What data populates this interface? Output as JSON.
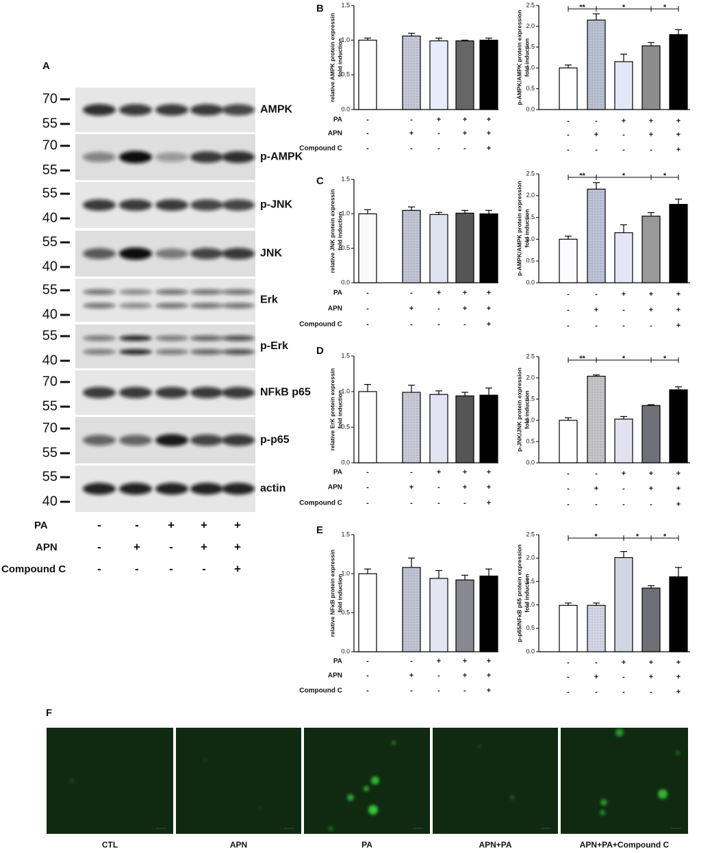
{
  "panel_labels": [
    "A",
    "B",
    "C",
    "D",
    "E",
    "F"
  ],
  "blot": {
    "rows": [
      {
        "protein": "AMPK",
        "markers": [
          70,
          55
        ]
      },
      {
        "protein": "p-AMPK",
        "markers": [
          70,
          55
        ]
      },
      {
        "protein": "p-JNK",
        "markers": [
          55,
          40
        ]
      },
      {
        "protein": "JNK",
        "markers": [
          55,
          40
        ]
      },
      {
        "protein": "Erk",
        "markers": [
          55,
          40
        ]
      },
      {
        "protein": "p-Erk",
        "markers": [
          55,
          40
        ]
      },
      {
        "protein": "NFkB p65",
        "markers": [
          70,
          55
        ]
      },
      {
        "protein": "p-p65",
        "markers": [
          70,
          55
        ]
      },
      {
        "protein": "actin",
        "markers": [
          55,
          40
        ]
      }
    ],
    "treatments": [
      {
        "name": "PA",
        "signs": [
          "-",
          "-",
          "+",
          "+",
          "+"
        ]
      },
      {
        "name": "APN",
        "signs": [
          "-",
          "+",
          "-",
          "+",
          "+"
        ]
      },
      {
        "name": "Compound C",
        "signs": [
          "-",
          "-",
          "-",
          "-",
          "+"
        ]
      }
    ]
  },
  "chart_data": [
    {
      "type": "bar",
      "ylabel": [
        "relative AMPK protein expressin",
        "fold induction"
      ],
      "ylim": [
        0,
        1.5
      ],
      "yticks": [
        {
          "value": 0,
          "label": "0.0"
        },
        0.5,
        {
          "value": 1,
          "label": "1.0"
        },
        1.5
      ],
      "values": [
        1.0,
        1.06,
        0.99,
        0.99,
        1.0
      ],
      "errors": [
        0.03,
        0.04,
        0.04,
        0.01,
        0.03
      ],
      "colors": [
        "#ffffff",
        "#c3c7d8",
        "#e6ecfa",
        "#666666",
        "#000000"
      ],
      "treatments": [
        {
          "name": "PA",
          "signs": [
            "-",
            "-",
            "+",
            "+",
            "+"
          ]
        },
        {
          "name": "APN",
          "signs": [
            "-",
            "+",
            "-",
            "+",
            "+"
          ]
        },
        {
          "name": "Compound C",
          "signs": [
            "-",
            "-",
            "-",
            "-",
            "+"
          ]
        }
      ],
      "significance": []
    },
    {
      "type": "bar",
      "ylabel": [
        "p-AMPK/AMPK protein expression",
        "fold induction"
      ],
      "ylim": [
        0,
        2.5
      ],
      "yticks": [
        {
          "value": 0,
          "label": "0.0"
        },
        0.5,
        {
          "value": 1,
          "label": "1.0"
        },
        1.5,
        {
          "value": 2,
          "label": "2.0"
        },
        2.5
      ],
      "values": [
        1.0,
        2.15,
        1.15,
        1.53,
        1.8
      ],
      "errors": [
        0.07,
        0.15,
        0.18,
        0.08,
        0.12
      ],
      "colors": [
        "#ffffff",
        "#b8c0d2",
        "#e3e8f8",
        "#8c8c8c",
        "#000000"
      ],
      "treatments": [
        {
          "signs": [
            "-",
            "-",
            "+",
            "+",
            "+"
          ]
        },
        {
          "signs": [
            "-",
            "+",
            "-",
            "+",
            "+"
          ]
        },
        {
          "signs": [
            "-",
            "-",
            "-",
            "-",
            "+"
          ]
        }
      ],
      "significance": [
        {
          "from": 0,
          "to": 1,
          "label": "**"
        },
        {
          "from": 1,
          "to": 3,
          "label": "*"
        },
        {
          "from": 3,
          "to": 4,
          "label": "*"
        }
      ]
    },
    {
      "type": "bar",
      "ylabel": [
        "relative JNK protein expressin",
        "fold induction"
      ],
      "ylim": [
        0,
        1.5
      ],
      "yticks": [
        {
          "value": 0,
          "label": "0.0"
        },
        0.5,
        {
          "value": 1,
          "label": "1.0"
        },
        1.5
      ],
      "values": [
        1.0,
        1.05,
        0.99,
        1.01,
        1.0
      ],
      "errors": [
        0.06,
        0.05,
        0.03,
        0.04,
        0.05
      ],
      "colors": [
        "#fafafa",
        "#c0c4d4",
        "#dfe3ef",
        "#555555",
        "#000000"
      ],
      "treatments": [
        {
          "name": "PA",
          "signs": [
            "-",
            "-",
            "+",
            "+",
            "+"
          ]
        },
        {
          "name": "APN",
          "signs": [
            "-",
            "+",
            "-",
            "+",
            "+"
          ]
        },
        {
          "name": "Compound C",
          "signs": [
            "-",
            "-",
            "-",
            "-",
            "+"
          ]
        }
      ],
      "significance": []
    },
    {
      "type": "bar",
      "ylabel": [
        "p-AMPK/AMPK  protein expression",
        "fold induction"
      ],
      "ylim": [
        0,
        2.5
      ],
      "yticks": [
        {
          "value": 0,
          "label": "0.0"
        },
        0.5,
        {
          "value": 1,
          "label": "1.0"
        },
        1.5,
        {
          "value": 2,
          "label": "2.0"
        },
        2.5
      ],
      "values": [
        1.0,
        2.15,
        1.15,
        1.53,
        1.8
      ],
      "errors": [
        0.07,
        0.15,
        0.18,
        0.08,
        0.12
      ],
      "colors": [
        "#fcfcff",
        "#bcc3d6",
        "#e2e6f5",
        "#999999",
        "#000000"
      ],
      "treatments": [
        {
          "signs": [
            "-",
            "-",
            "+",
            "+",
            "+"
          ]
        },
        {
          "signs": [
            "-",
            "+",
            "-",
            "+",
            "+"
          ]
        },
        {
          "signs": [
            "-",
            "-",
            "-",
            "-",
            "+"
          ]
        }
      ],
      "significance": [
        {
          "from": 0,
          "to": 1,
          "label": "**"
        },
        {
          "from": 1,
          "to": 3,
          "label": "*"
        },
        {
          "from": 3,
          "to": 4,
          "label": "*"
        }
      ]
    },
    {
      "type": "bar",
      "ylabel": [
        "relative ErK protein expressin",
        "fold induction"
      ],
      "ylim": [
        0,
        1.5
      ],
      "yticks": [
        {
          "value": 0,
          "label": "0.0"
        },
        0.5,
        {
          "value": 1,
          "label": "1.0"
        },
        1.5
      ],
      "values": [
        1.0,
        0.99,
        0.96,
        0.94,
        0.95
      ],
      "errors": [
        0.1,
        0.1,
        0.05,
        0.05,
        0.1
      ],
      "colors": [
        "#ffffff",
        "#c8c9d8",
        "#e3e3f3",
        "#555555",
        "#000000"
      ],
      "treatments": [
        {
          "name": "PA",
          "signs": [
            "-",
            "-",
            "+",
            "+",
            "+"
          ]
        },
        {
          "name": "APN",
          "signs": [
            "-",
            "+",
            "-",
            "+",
            "+"
          ]
        },
        {
          "name": "Compound C",
          "signs": [
            "-",
            "-",
            "-",
            "-",
            "+"
          ]
        }
      ],
      "significance": []
    },
    {
      "type": "bar",
      "ylabel": [
        "p-JNK/JNK protein expression",
        "fold induction"
      ],
      "ylim": [
        0,
        2.5
      ],
      "yticks": [
        {
          "value": 0,
          "label": "0.0"
        },
        0.5,
        {
          "value": 1,
          "label": "1.0"
        },
        1.5,
        {
          "value": 2,
          "label": "2.0"
        },
        2.5
      ],
      "values": [
        1.0,
        2.04,
        1.03,
        1.35,
        1.72
      ],
      "errors": [
        0.06,
        0.03,
        0.06,
        0.02,
        0.07
      ],
      "colors": [
        "#ffffff",
        "#c3c3c8",
        "#e1e1ef",
        "#707078",
        "#000000"
      ],
      "treatments": [
        {
          "signs": [
            "-",
            "-",
            "+",
            "+",
            "+"
          ]
        },
        {
          "signs": [
            "-",
            "+",
            "-",
            "+",
            "+"
          ]
        },
        {
          "signs": [
            "-",
            "-",
            "-",
            "-",
            "+"
          ]
        }
      ],
      "significance": [
        {
          "from": 0,
          "to": 1,
          "label": "**"
        },
        {
          "from": 1,
          "to": 3,
          "label": "*"
        },
        {
          "from": 3,
          "to": 4,
          "label": "*"
        }
      ]
    },
    {
      "type": "bar",
      "ylabel": [
        "relative NFκB protein expressin",
        "fold induction"
      ],
      "ylim": [
        0,
        1.5
      ],
      "yticks": [
        {
          "value": 0,
          "label": "0.0"
        },
        0.5,
        {
          "value": 1,
          "label": "1.0"
        },
        1.5
      ],
      "values": [
        1.0,
        1.08,
        0.94,
        0.92,
        0.97
      ],
      "errors": [
        0.06,
        0.12,
        0.1,
        0.06,
        0.09
      ],
      "colors": [
        "#ffffff",
        "#c0c3d3",
        "#e3e5f0",
        "#888890",
        "#000000"
      ],
      "treatments": [
        {
          "name": "PA",
          "signs": [
            "-",
            "-",
            "+",
            "+",
            "+"
          ]
        },
        {
          "name": "APN",
          "signs": [
            "-",
            "+",
            "-",
            "+",
            "+"
          ]
        },
        {
          "name": "Compound C",
          "signs": [
            "-",
            "-",
            "-",
            "-",
            "+"
          ]
        }
      ],
      "significance": []
    },
    {
      "type": "bar",
      "ylabel": [
        "p-p65/NFκB p65 protein expression",
        "fold induction"
      ],
      "ylim": [
        0,
        2.5
      ],
      "yticks": [
        {
          "value": 0,
          "label": "0.0"
        },
        0.5,
        {
          "value": 1,
          "label": "1.0"
        },
        1.5,
        {
          "value": 2,
          "label": "2.0"
        },
        2.5
      ],
      "values": [
        0.99,
        0.99,
        2.01,
        1.36,
        1.6
      ],
      "errors": [
        0.05,
        0.05,
        0.13,
        0.05,
        0.2
      ],
      "colors": [
        "#ffffff",
        "#d4d6e8",
        "#d0d7e0",
        "#6e6e76",
        "#000000"
      ],
      "treatments": [
        {
          "signs": [
            "-",
            "-",
            "+",
            "+",
            "+"
          ]
        },
        {
          "signs": [
            "-",
            "+",
            "-",
            "+",
            "+"
          ]
        },
        {
          "signs": [
            "-",
            "-",
            "-",
            "-",
            "+"
          ]
        }
      ],
      "significance": [
        {
          "from": 0,
          "to": 2,
          "label": "*"
        },
        {
          "from": 2,
          "to": 3,
          "label": "*"
        },
        {
          "from": 3,
          "to": 4,
          "label": "*"
        }
      ]
    }
  ],
  "images": {
    "labels": [
      "CTL",
      "APN",
      "PA",
      "APN+PA",
      "APN+PA+Compound C"
    ]
  }
}
